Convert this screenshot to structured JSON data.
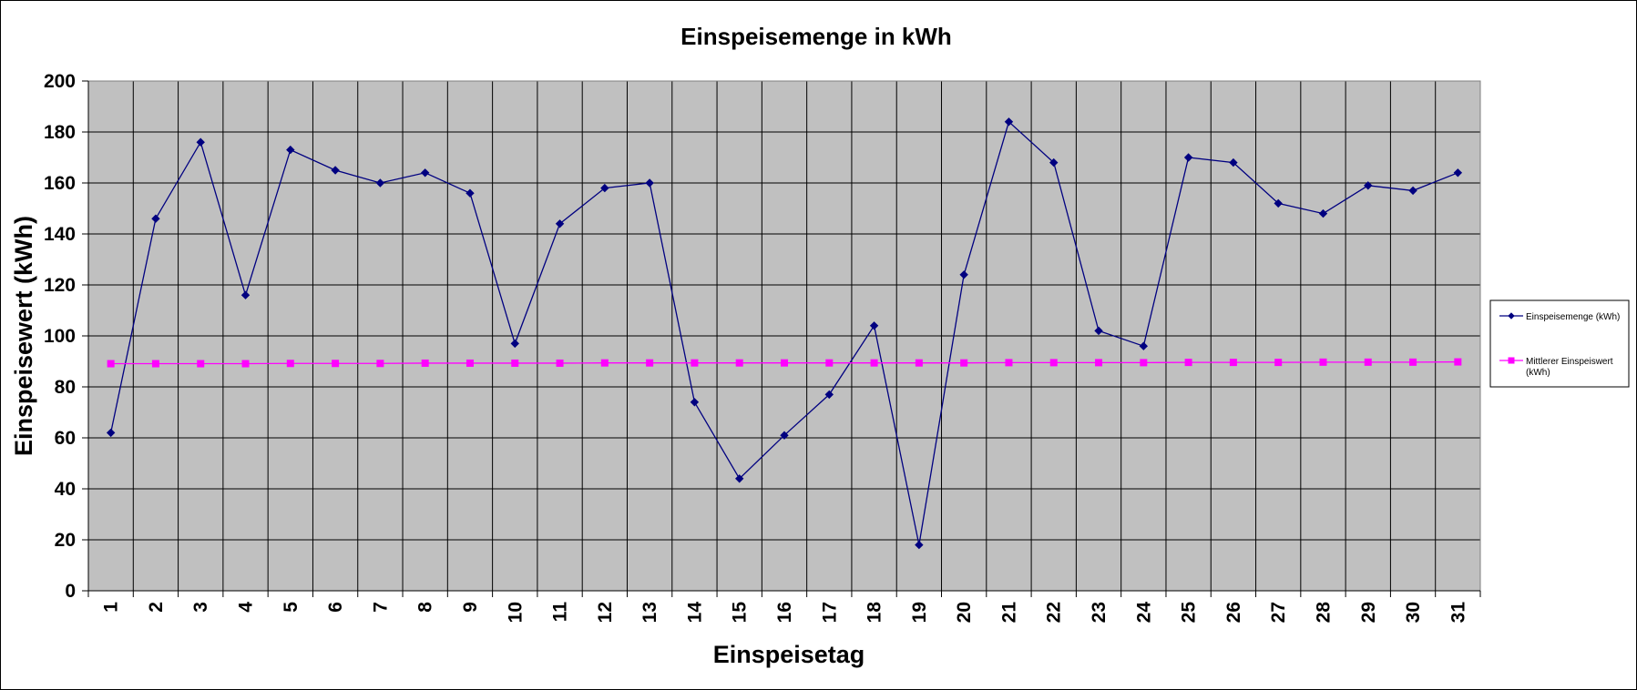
{
  "chart_data": {
    "type": "line",
    "title": "Einspeisemenge in kWh",
    "xlabel": "Einspeisetag",
    "ylabel": "Einspeisewert  (kWh)",
    "categories": [
      "1",
      "2",
      "3",
      "4",
      "5",
      "6",
      "7",
      "8",
      "9",
      "10",
      "11",
      "12",
      "13",
      "14",
      "15",
      "16",
      "17",
      "18",
      "19",
      "20",
      "21",
      "22",
      "23",
      "24",
      "25",
      "26",
      "27",
      "28",
      "29",
      "30",
      "31"
    ],
    "ylim": [
      0,
      200
    ],
    "yticks": [
      "0",
      "20",
      "40",
      "60",
      "80",
      "100",
      "120",
      "140",
      "160",
      "180",
      "200"
    ],
    "grid": true,
    "legend_position": "right",
    "series": [
      {
        "name": "Einspeisemenge (kWh)",
        "color": "#000080",
        "marker": "diamond",
        "values": [
          62,
          146,
          176,
          116,
          173,
          165,
          160,
          164,
          156,
          97,
          144,
          158,
          160,
          74,
          44,
          61,
          77,
          104,
          18,
          124,
          184,
          168,
          102,
          96,
          170,
          168,
          152,
          148,
          159,
          157,
          164
        ]
      },
      {
        "name": "Mittlerer Einspeiswert (kWh)",
        "legend_lines": [
          "Mittlerer Einspeiswert",
          "(kWh)"
        ],
        "color": "#ff00ff",
        "marker": "square",
        "values": [
          89.1,
          89.1,
          89.1,
          89.1,
          89.2,
          89.2,
          89.2,
          89.3,
          89.3,
          89.3,
          89.3,
          89.4,
          89.4,
          89.4,
          89.4,
          89.4,
          89.4,
          89.4,
          89.4,
          89.4,
          89.5,
          89.5,
          89.5,
          89.5,
          89.6,
          89.6,
          89.6,
          89.7,
          89.7,
          89.7,
          89.8
        ]
      }
    ],
    "plot_background": "#c0c0c0",
    "grid_color": "#000000"
  }
}
